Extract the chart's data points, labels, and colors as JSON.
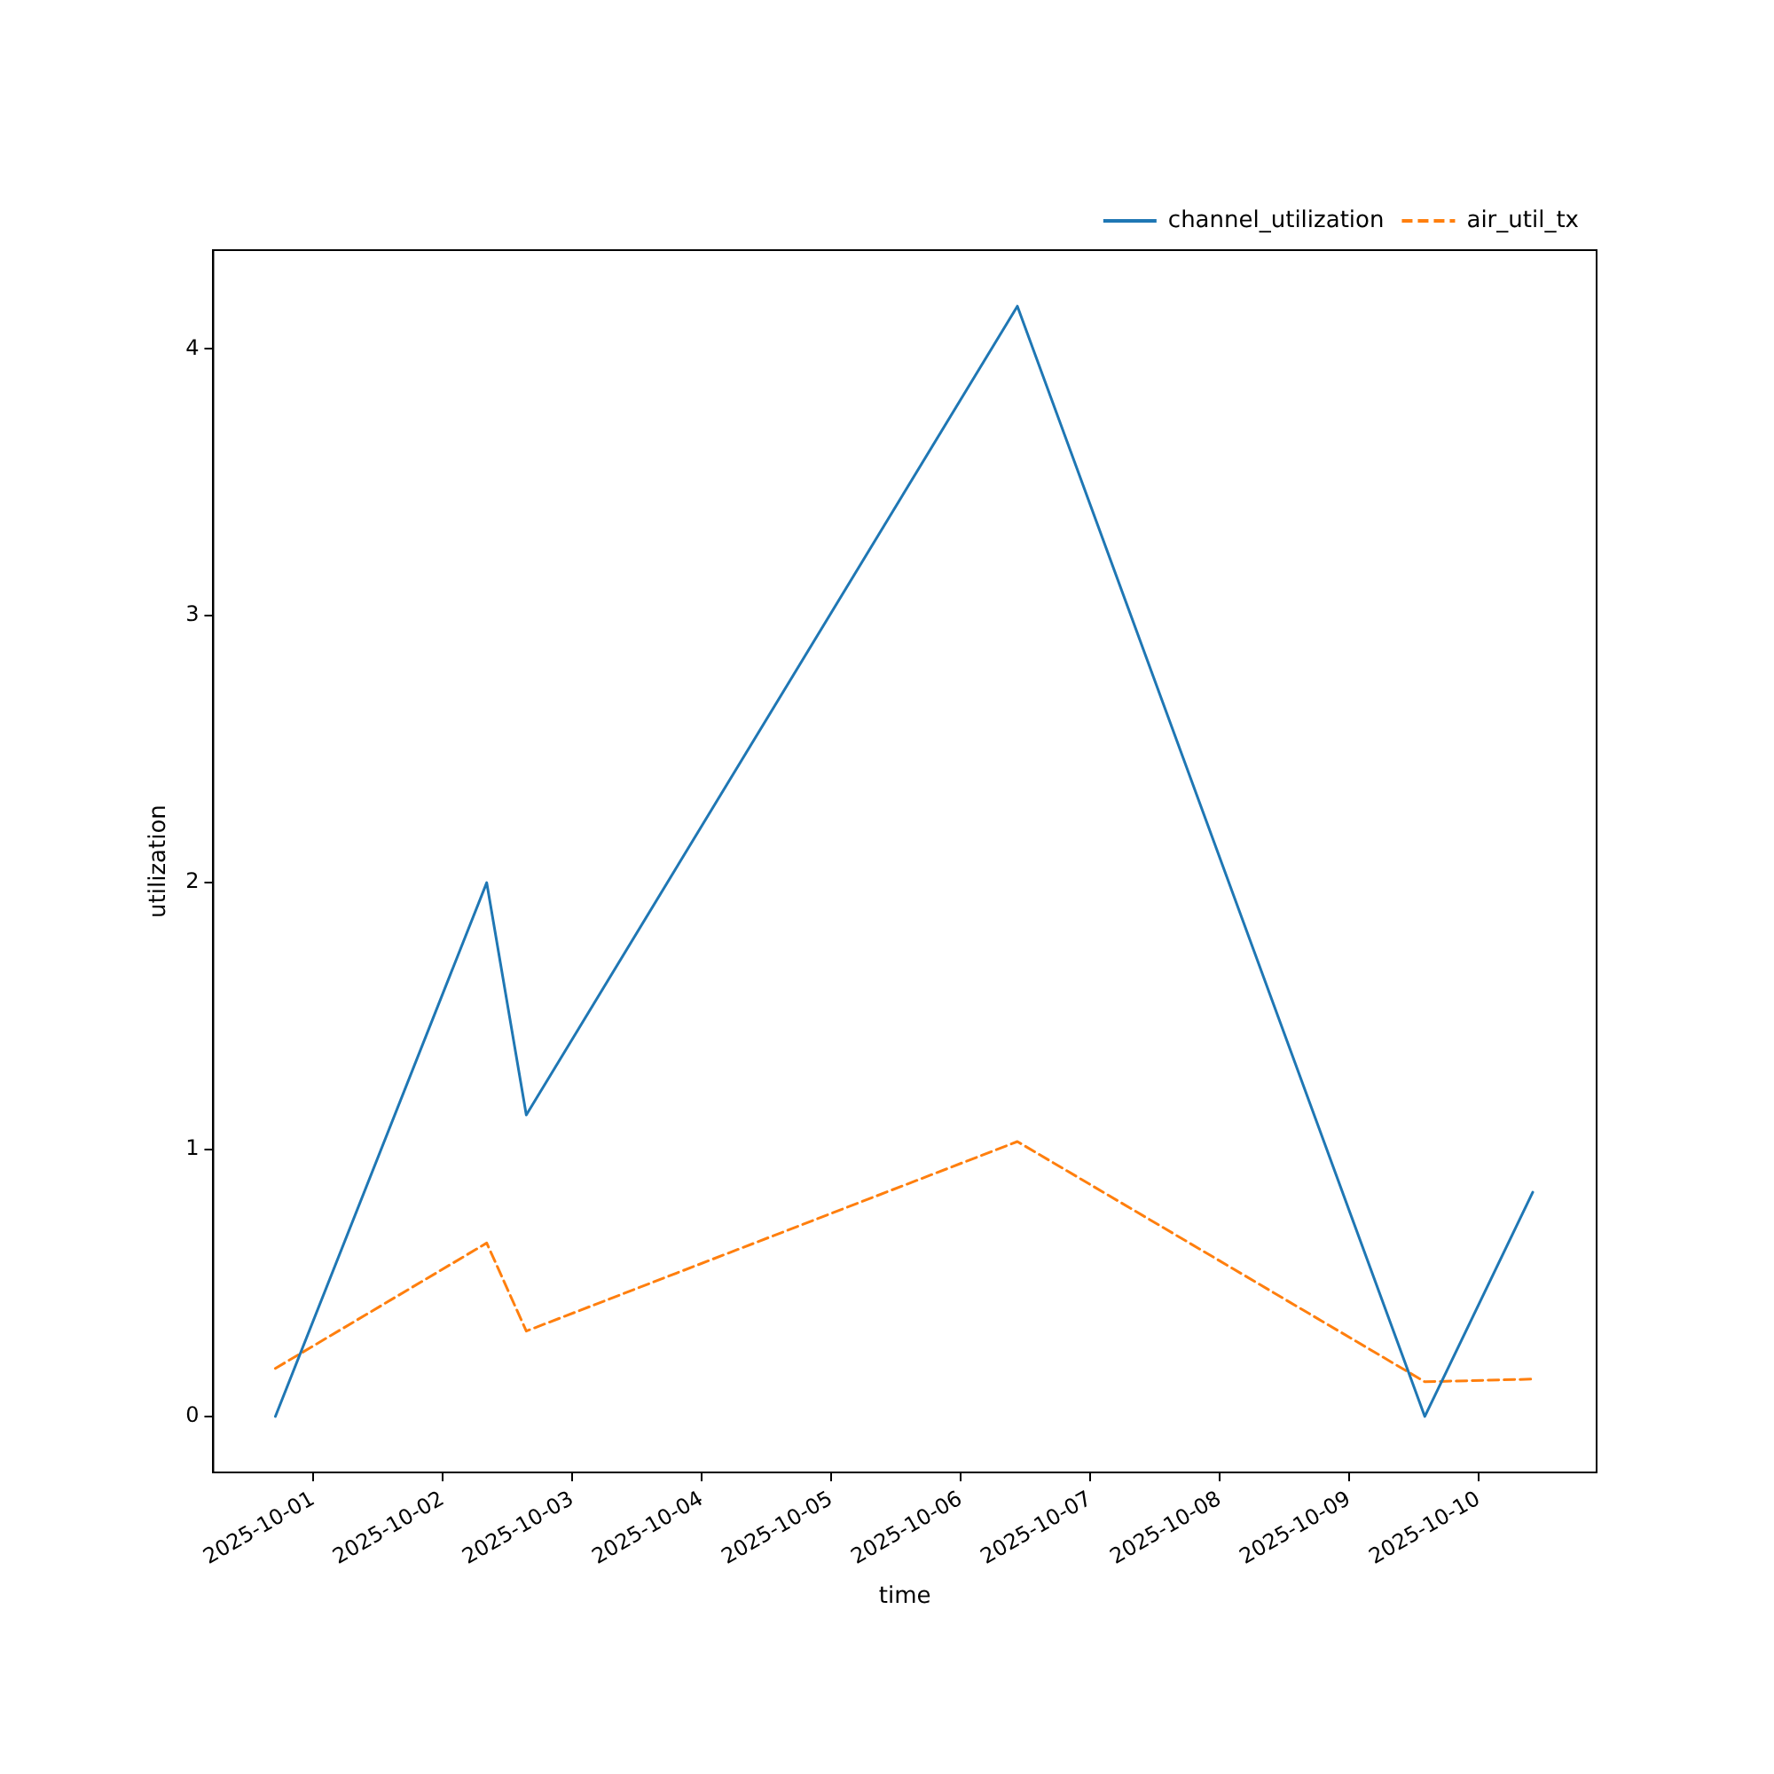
{
  "chart_data": {
    "type": "line",
    "xlabel": "time",
    "ylabel": "utilization",
    "x": [
      "2025-09-30T17:00",
      "2025-10-02T08:10",
      "2025-10-02T15:30",
      "2025-10-06T10:30",
      "2025-10-09T14:00",
      "2025-10-10T10:00"
    ],
    "series": [
      {
        "name": "channel_utilization",
        "color": "#1f77b4",
        "line_style": "solid",
        "values": [
          0,
          2.0,
          1.13,
          4.16,
          0,
          0.84
        ]
      },
      {
        "name": "air_util_tx",
        "color": "#ff7f0e",
        "line_style": "dashed",
        "values": [
          0.18,
          0.65,
          0.32,
          1.03,
          0.13,
          0.14
        ]
      }
    ],
    "xlim": [
      "2025-09-30T05:30",
      "2025-10-10T21:50"
    ],
    "xticks": [
      "2025-10-01",
      "2025-10-02",
      "2025-10-03",
      "2025-10-04",
      "2025-10-05",
      "2025-10-06",
      "2025-10-07",
      "2025-10-08",
      "2025-10-09",
      "2025-10-10"
    ],
    "ylim": [
      -0.21,
      4.37
    ],
    "yticks": [
      0,
      1,
      2,
      3,
      4
    ],
    "grid": false,
    "legend": "top right",
    "marker": "none"
  }
}
